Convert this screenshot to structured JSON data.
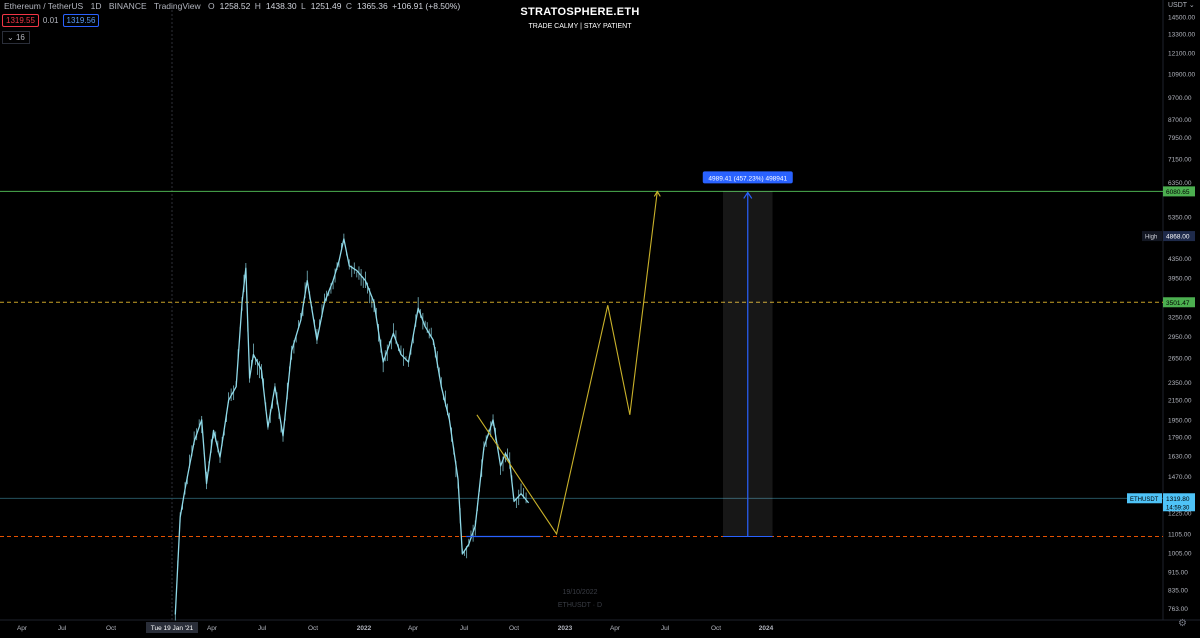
{
  "header": {
    "symbol": "Ethereum / TetherUS",
    "interval": "1D",
    "exchange": "BINANCE",
    "source": "TradingView",
    "open_label": "O",
    "open": "1258.52",
    "high_label": "H",
    "high": "1438.30",
    "low_label": "L",
    "low": "1251.49",
    "close_label": "C",
    "close": "1365.36",
    "change": "+106.91 (+8.50%)",
    "bid": "1319.55",
    "spread": "0.01",
    "ask": "1319.56",
    "indicators_count": "16",
    "currency": "USDT"
  },
  "watermark": {
    "title": "STRATOSPHERE.ETH",
    "subtitle": "TRADE CALMY | STAY PATIENT",
    "date": "19/10/2022",
    "symbol_line": "ETHUSDT · D"
  },
  "chart_data": {
    "type": "line",
    "y_scale": "log",
    "y_range": [
      720,
      15000
    ],
    "x_ticks": [
      "Apr",
      "Jul",
      "Oct",
      "Tue 19 Jan '21",
      "Apr",
      "Jul",
      "Oct",
      "2022",
      "Apr",
      "Jul",
      "Oct",
      "2023",
      "Apr",
      "Jul",
      "Oct",
      "2024"
    ],
    "y_ticks": [
      14500,
      13300,
      12100,
      10900,
      9700,
      8700,
      7950,
      7150,
      6350,
      5350,
      4350,
      3950,
      3250,
      2950,
      2650,
      2350,
      2150,
      1950,
      1790,
      1630,
      1470,
      1225,
      1105,
      1005,
      915,
      835,
      763
    ],
    "y_tick_labels": [
      "14500.00",
      "13300.00",
      "12100.00",
      "10900.00",
      "9700.00",
      "8700.00",
      "7950.00",
      "7150.00",
      "6350.00",
      "5350.00",
      "4350.00",
      "3950.00",
      "3250.00",
      "2950.00",
      "2650.00",
      "2350.00",
      "2150.00",
      "1950.00",
      "1790.00",
      "1630.00",
      "1470.00",
      "1225.00",
      "1105.00",
      "1005.00",
      "915.00",
      "835.00",
      "763.00"
    ],
    "price_series": {
      "name": "ETHUSDT",
      "x": [
        "2021-01-01",
        "2021-01-10",
        "2021-01-19",
        "2021-02-05",
        "2021-02-19",
        "2021-02-28",
        "2021-03-13",
        "2021-03-25",
        "2021-04-10",
        "2021-04-24",
        "2021-05-05",
        "2021-05-12",
        "2021-05-19",
        "2021-05-26",
        "2021-06-10",
        "2021-06-22",
        "2021-07-05",
        "2021-07-20",
        "2021-08-05",
        "2021-08-22",
        "2021-09-03",
        "2021-09-21",
        "2021-10-05",
        "2021-10-21",
        "2021-11-01",
        "2021-11-10",
        "2021-11-20",
        "2021-12-04",
        "2021-12-20",
        "2022-01-05",
        "2022-01-22",
        "2022-02-10",
        "2022-02-24",
        "2022-03-10",
        "2022-03-28",
        "2022-04-10",
        "2022-04-25",
        "2022-05-10",
        "2022-05-25",
        "2022-06-10",
        "2022-06-18",
        "2022-06-30",
        "2022-07-12",
        "2022-07-28",
        "2022-08-14",
        "2022-08-28",
        "2022-09-06",
        "2022-09-14",
        "2022-09-22",
        "2022-10-05",
        "2022-10-19"
      ],
      "y": [
        740,
        1200,
        1380,
        1750,
        1950,
        1420,
        1850,
        1620,
        2150,
        2300,
        3500,
        4150,
        2400,
        2700,
        2500,
        1880,
        2300,
        1800,
        2750,
        3200,
        3900,
        2900,
        3500,
        3900,
        4300,
        4800,
        4200,
        4100,
        3900,
        3500,
        2600,
        3000,
        2700,
        2600,
        3400,
        3100,
        2900,
        2300,
        1950,
        1450,
        1000,
        1050,
        1150,
        1700,
        1950,
        1550,
        1650,
        1580,
        1300,
        1350,
        1290
      ]
    },
    "projection": {
      "x": [
        "2022-07-15",
        "2022-12-10",
        "2023-03-15",
        "2023-04-25",
        "2023-06-15"
      ],
      "y": [
        2000,
        1105,
        3450,
        2000,
        6080
      ]
    },
    "measure": {
      "x_start": "2023-10-15",
      "x_end": "2024-01-15",
      "y_low": 1091,
      "y_high": 6080,
      "label": "4989.41 (457.23%) 498941"
    },
    "levels": [
      {
        "value": 6080.65,
        "label": "6080.65",
        "color": "#4caf50",
        "style": "solid"
      },
      {
        "value": 3501.47,
        "label": "3501.47",
        "color": "#c9a227",
        "style": "dashed"
      },
      {
        "value": 1319.8,
        "label": "1319.80",
        "color": "#2a5f6e",
        "style": "solid"
      },
      {
        "value": 1091,
        "label": "",
        "color": "#e65100",
        "style": "dashed"
      }
    ],
    "high_marker": {
      "tag": "High",
      "value": "4868.00"
    },
    "last_price": {
      "tag": "ETHUSDT",
      "value": "1319.80",
      "countdown": "14:59:30"
    }
  }
}
